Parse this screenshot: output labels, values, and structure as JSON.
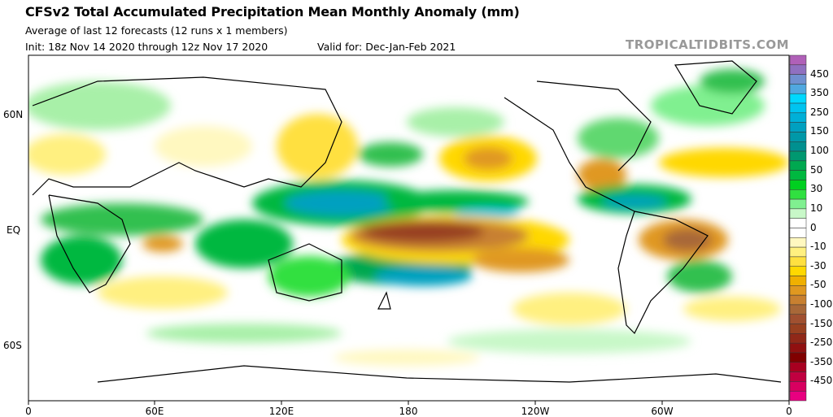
{
  "header": {
    "title": "CFSv2 Total Accumulated Precipitation Mean Monthly Anomaly (mm)",
    "subtitle": "Average of last 12 forecasts (12 runs x 1 members)",
    "init": "Init: 18z Nov 14 2020 through 12z Nov 17 2020",
    "valid": "Valid for: Dec-Jan-Feb 2021",
    "watermark": "TROPICALTIDBITS.COM"
  },
  "axes": {
    "lon_labels": [
      "0",
      "60E",
      "120E",
      "180",
      "120W",
      "60W",
      "0"
    ],
    "lat_labels": [
      "60N",
      "EQ",
      "60S"
    ]
  },
  "colorbar": {
    "labels": [
      "450",
      "350",
      "250",
      "150",
      "100",
      "50",
      "30",
      "10",
      "0",
      "-10",
      "-30",
      "-50",
      "-100",
      "-150",
      "-250",
      "-350",
      "-450"
    ],
    "colors": [
      "#b060b8",
      "#9070c0",
      "#7090d0",
      "#50a8e0",
      "#00d8ff",
      "#00c4f0",
      "#00b0d8",
      "#00a0c0",
      "#0098a8",
      "#009090",
      "#009870",
      "#00a850",
      "#00b840",
      "#00d020",
      "#30e040",
      "#80f090",
      "#c8f8c8",
      "#ffffff",
      "#ffffff",
      "#fff8c0",
      "#fff080",
      "#ffe040",
      "#ffd800",
      "#f0b000",
      "#e09820",
      "#c88030",
      "#a86838",
      "#a05030",
      "#984020",
      "#902818",
      "#901010",
      "#800000",
      "#a80020",
      "#c00040",
      "#d80060",
      "#e80080"
    ]
  }
}
